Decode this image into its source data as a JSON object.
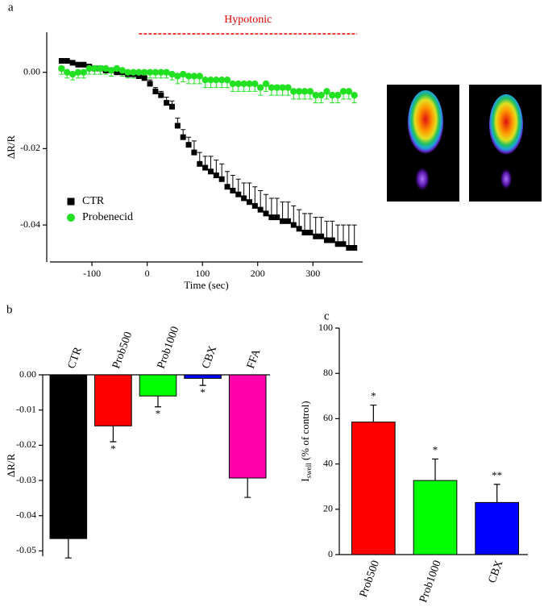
{
  "chart_data": [
    {
      "type": "scatter",
      "panel": "a",
      "x_label": "Time (sec)",
      "y_label": "ΔR/R",
      "xlim": [
        -176,
        390
      ],
      "ylim": [
        -0.0497,
        0.0105
      ],
      "xticks": [
        -100,
        0,
        100,
        200,
        300
      ],
      "yticks": [
        {
          "value": 0,
          "label": "0.00"
        },
        {
          "value": -0.02,
          "label": "-0.02"
        },
        {
          "value": -0.04,
          "label": "-0.04"
        }
      ],
      "legend": "lower left",
      "annotation": {
        "label": "Hypotonic",
        "color": "#e00000",
        "from": -15,
        "to": 380
      },
      "x": [
        -155,
        -145,
        -135,
        -125,
        -115,
        -105,
        -95,
        -85,
        -75,
        -65,
        -55,
        -45,
        -35,
        -25,
        -15,
        -5,
        5,
        15,
        25,
        35,
        45,
        55,
        65,
        75,
        85,
        95,
        105,
        115,
        125,
        135,
        145,
        155,
        165,
        175,
        185,
        195,
        205,
        215,
        225,
        235,
        245,
        255,
        265,
        275,
        285,
        295,
        305,
        315,
        325,
        335,
        345,
        355,
        365,
        375
      ],
      "series": [
        {
          "name": "CTR",
          "color": "#000000",
          "marker": "square",
          "error_direction": "up",
          "values": [
            0.003,
            0.003,
            0.0025,
            0.002,
            0.002,
            0.0015,
            0.001,
            0.001,
            0.0005,
            0.0005,
            0,
            0,
            -0.0005,
            -0.0005,
            -0.001,
            -0.0015,
            -0.003,
            -0.005,
            -0.006,
            -0.008,
            -0.009,
            -0.014,
            -0.017,
            -0.019,
            -0.021,
            -0.024,
            -0.025,
            -0.026,
            -0.027,
            -0.028,
            -0.03,
            -0.031,
            -0.032,
            -0.033,
            -0.034,
            -0.035,
            -0.036,
            -0.037,
            -0.038,
            -0.038,
            -0.039,
            -0.039,
            -0.04,
            -0.041,
            -0.042,
            -0.042,
            -0.043,
            -0.043,
            -0.044,
            -0.044,
            -0.045,
            -0.045,
            -0.046,
            -0.046
          ],
          "errors": [
            0.0005,
            0.0005,
            0.0005,
            0.0005,
            0.0005,
            0.0005,
            0.0005,
            0.0005,
            0.0005,
            0.0005,
            0.0005,
            0.0005,
            0.0005,
            0.0005,
            0.0005,
            0.0005,
            0.001,
            0.001,
            0.001,
            0.0015,
            0.0015,
            0.002,
            0.002,
            0.002,
            0.003,
            0.003,
            0.003,
            0.004,
            0.004,
            0.004,
            0.004,
            0.004,
            0.004,
            0.004,
            0.005,
            0.005,
            0.005,
            0.005,
            0.005,
            0.005,
            0.005,
            0.005,
            0.005,
            0.005,
            0.005,
            0.005,
            0.005,
            0.005,
            0.005,
            0.005,
            0.005,
            0.005,
            0.006,
            0.006
          ]
        },
        {
          "name": "Probenecid",
          "color": "#22e022",
          "marker": "circle",
          "error_direction": "down",
          "values": [
            0.001,
            0,
            -0.0005,
            0,
            0,
            0.001,
            0.001,
            0.001,
            0.001,
            0.0005,
            0.001,
            0.0005,
            0,
            0,
            0,
            0,
            0,
            0,
            0,
            0,
            -0.0005,
            -0.001,
            -0.0005,
            -0.001,
            -0.001,
            -0.001,
            -0.002,
            -0.002,
            -0.002,
            -0.002,
            -0.002,
            -0.003,
            -0.003,
            -0.003,
            -0.003,
            -0.003,
            -0.004,
            -0.003,
            -0.004,
            -0.004,
            -0.004,
            -0.004,
            -0.005,
            -0.005,
            -0.005,
            -0.005,
            -0.006,
            -0.006,
            -0.005,
            -0.006,
            -0.006,
            -0.005,
            -0.005,
            -0.006
          ],
          "errors": [
            0.0015,
            0.0015,
            0.0015,
            0.0015,
            0.0015,
            0.0015,
            0.0015,
            0.0015,
            0.0015,
            0.0015,
            0.0015,
            0.0015,
            0.0015,
            0.0015,
            0.0015,
            0.0015,
            0.0015,
            0.0015,
            0.0015,
            0.0015,
            0.0015,
            0.002,
            0.002,
            0.002,
            0.002,
            0.002,
            0.002,
            0.002,
            0.002,
            0.002,
            0.002,
            0.002,
            0.002,
            0.002,
            0.002,
            0.002,
            0.002,
            0.002,
            0.002,
            0.002,
            0.002,
            0.002,
            0.002,
            0.002,
            0.002,
            0.002,
            0.002,
            0.002,
            0.002,
            0.002,
            0.002,
            0.002,
            0.002,
            0.002
          ]
        }
      ]
    },
    {
      "type": "bar",
      "panel": "b",
      "y_label": "ΔR/R",
      "category_labels": "top",
      "categories": [
        "CTR",
        "Prob500",
        "Prob1000",
        "CBX",
        "FFA"
      ],
      "values": [
        -0.0465,
        -0.0145,
        -0.006,
        -0.001,
        -0.0293
      ],
      "errors": [
        0.0055,
        0.0045,
        0.0031,
        0.002,
        0.0055
      ],
      "colors": [
        "#000000",
        "#ff0000",
        "#00ff00",
        "#0000ff",
        "#ff00aa"
      ],
      "significance": [
        null,
        "*",
        "*",
        "*",
        null
      ],
      "ylim": [
        -0.0515,
        0
      ],
      "yticks": [
        {
          "value": 0,
          "label": "0.00"
        },
        {
          "value": -0.01,
          "label": "-0.01"
        },
        {
          "value": -0.02,
          "label": "-0.02"
        },
        {
          "value": -0.03,
          "label": "-0.03"
        },
        {
          "value": -0.04,
          "label": "-0.04"
        },
        {
          "value": -0.05,
          "label": "-0.05"
        }
      ]
    },
    {
      "type": "bar",
      "panel": "c",
      "y_label": {
        "main": "I",
        "sub": "swell",
        "rest": " (% of control)"
      },
      "category_labels": "bottom",
      "categories": [
        "Prob500",
        "Prob1000",
        "CBX"
      ],
      "values": [
        58.5,
        32.7,
        23
      ],
      "errors": [
        7.5,
        9.5,
        8
      ],
      "colors": [
        "#ff0000",
        "#00ff00",
        "#0000ff"
      ],
      "significance": [
        "*",
        "*",
        "**"
      ],
      "ylim": [
        0,
        100
      ],
      "yticks": [
        0,
        20,
        40,
        60,
        80,
        100
      ]
    }
  ]
}
